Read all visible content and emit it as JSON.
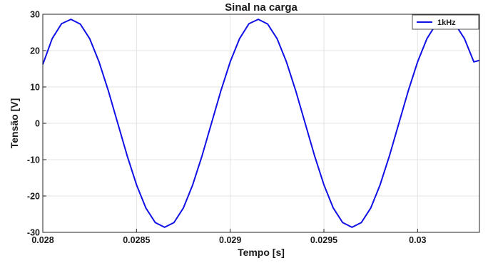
{
  "chart_data": {
    "type": "line",
    "title": "Sinal na carga",
    "xlabel": "Tempo [s]",
    "ylabel": "Tensão [V]",
    "xlim": [
      0.028,
      0.03033
    ],
    "ylim": [
      -30,
      30
    ],
    "xticks": [
      0.028,
      0.0285,
      0.029,
      0.0295,
      0.03
    ],
    "xtick_labels": [
      "0.028",
      "0.0285",
      "0.029",
      "0.0295",
      "0.03"
    ],
    "yticks": [
      30,
      20,
      10,
      0,
      -10,
      -20,
      -30
    ],
    "ytick_labels": [
      "30",
      "20",
      "10",
      "0",
      "-10",
      "-20",
      "-30"
    ],
    "grid": true,
    "legend_position": "top-right",
    "series": [
      {
        "name": "1kHz",
        "color": "#1010e6",
        "amplitude": 28.8,
        "frequency_hz": 1000,
        "peak_times": [
          0.02815,
          0.02915,
          0.03015
        ],
        "x": [
          0.028,
          0.02805,
          0.0281,
          0.02815,
          0.0282,
          0.02825,
          0.0283,
          0.02835,
          0.0284,
          0.02845,
          0.0285,
          0.02855,
          0.0286,
          0.02865,
          0.0287,
          0.02875,
          0.0288,
          0.02885,
          0.0289,
          0.02895,
          0.029,
          0.02905,
          0.0291,
          0.02915,
          0.0292,
          0.02925,
          0.0293,
          0.02935,
          0.0294,
          0.02945,
          0.0295,
          0.02955,
          0.0296,
          0.02965,
          0.0297,
          0.02975,
          0.0298,
          0.02985,
          0.0299,
          0.02995,
          0.03,
          0.03005,
          0.0301,
          0.03015,
          0.0302,
          0.03025,
          0.0303,
          0.03033
        ],
        "y": [
          16.2,
          23.3,
          27.4,
          28.6,
          27.3,
          23.3,
          16.9,
          8.9,
          0.0,
          -8.9,
          -16.9,
          -23.3,
          -27.3,
          -28.6,
          -27.3,
          -23.3,
          -16.9,
          -8.9,
          0.0,
          8.9,
          16.9,
          23.3,
          27.4,
          28.6,
          27.3,
          23.3,
          16.9,
          8.9,
          0.0,
          -8.9,
          -16.9,
          -23.3,
          -27.3,
          -28.6,
          -27.3,
          -23.3,
          -16.9,
          -8.9,
          0.0,
          8.9,
          16.9,
          23.3,
          27.4,
          28.6,
          27.3,
          23.3,
          16.9,
          17.3
        ]
      }
    ]
  }
}
